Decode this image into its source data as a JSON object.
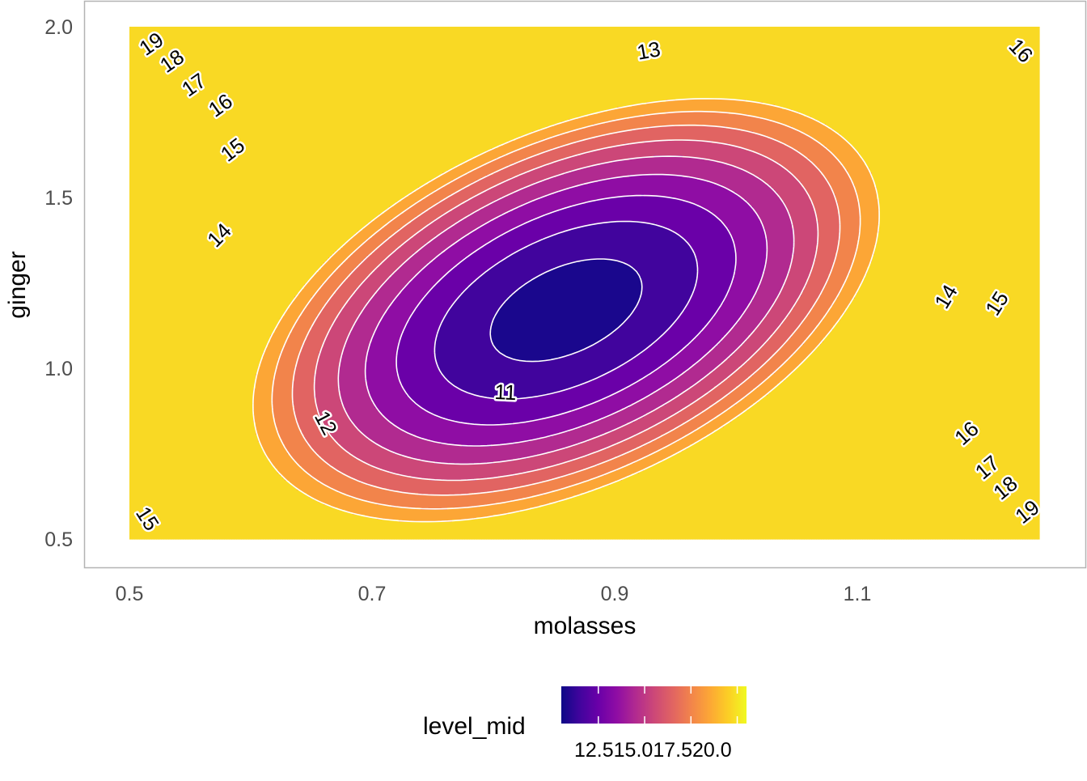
{
  "chart_data": {
    "type": "contour",
    "xlabel": "molasses",
    "ylabel": "ginger",
    "xlim": [
      0.5,
      1.25
    ],
    "ylim": [
      0.5,
      2.0
    ],
    "x_ticks": [
      "0.5",
      "0.7",
      "0.9",
      "1.1"
    ],
    "x_tick_values": [
      0.5,
      0.7,
      0.9,
      1.1
    ],
    "y_ticks": [
      "0.5",
      "1.0",
      "1.5",
      "2.0"
    ],
    "y_tick_values": [
      0.5,
      1.0,
      1.5,
      2.0
    ],
    "colormap": "plasma",
    "colors": [
      "#0d0887",
      "#41049d",
      "#6a00a8",
      "#8f0da4",
      "#b12a90",
      "#cc4778",
      "#e16462",
      "#f2844b",
      "#fca636",
      "#fcce25",
      "#f0f921"
    ],
    "minimum": {
      "x": 0.86,
      "y": 1.17,
      "value": 10.5
    },
    "contour_levels": [
      11,
      12,
      13,
      14,
      15,
      16,
      17,
      18,
      19
    ],
    "contour_labels": [
      {
        "text": "11",
        "x": 0.81,
        "y": 0.93
      },
      {
        "text": "12",
        "x": 0.662,
        "y": 0.84
      },
      {
        "text": "13",
        "x": 0.928,
        "y": 1.93
      },
      {
        "text": "14",
        "x": 0.574,
        "y": 1.39
      },
      {
        "text": "14",
        "x": 1.173,
        "y": 1.21
      },
      {
        "text": "15",
        "x": 0.585,
        "y": 1.64
      },
      {
        "text": "15",
        "x": 1.215,
        "y": 1.19
      },
      {
        "text": "15",
        "x": 0.515,
        "y": 0.56
      },
      {
        "text": "16",
        "x": 0.575,
        "y": 1.77
      },
      {
        "text": "16",
        "x": 1.235,
        "y": 1.93
      },
      {
        "text": "16",
        "x": 1.19,
        "y": 0.81
      },
      {
        "text": "17",
        "x": 0.553,
        "y": 1.83
      },
      {
        "text": "17",
        "x": 1.207,
        "y": 0.71
      },
      {
        "text": "18",
        "x": 0.535,
        "y": 1.9
      },
      {
        "text": "18",
        "x": 1.222,
        "y": 0.65
      },
      {
        "text": "19",
        "x": 0.518,
        "y": 1.95
      },
      {
        "text": "19",
        "x": 1.24,
        "y": 0.58
      }
    ],
    "legend": {
      "title": "level_mid",
      "placement": "bottom",
      "labels": [
        "12.5",
        "15.0",
        "17.5",
        "20.0"
      ],
      "range": [
        10.5,
        20.5
      ]
    }
  }
}
